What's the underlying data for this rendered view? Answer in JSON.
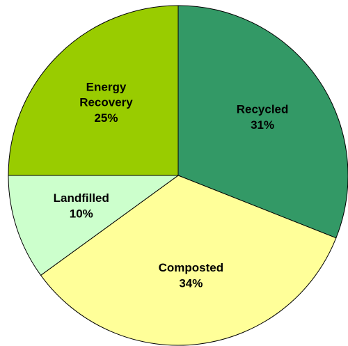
{
  "chart_data": {
    "type": "pie",
    "categories": [
      "Recycled",
      "Composted",
      "Landfilled",
      "Energy Recovery"
    ],
    "values": [
      31,
      34,
      10,
      25
    ],
    "value_labels": [
      "31%",
      "34%",
      "10%",
      "25%"
    ],
    "colors": [
      "#339966",
      "#ffff99",
      "#ccffcc",
      "#99cc00"
    ]
  }
}
